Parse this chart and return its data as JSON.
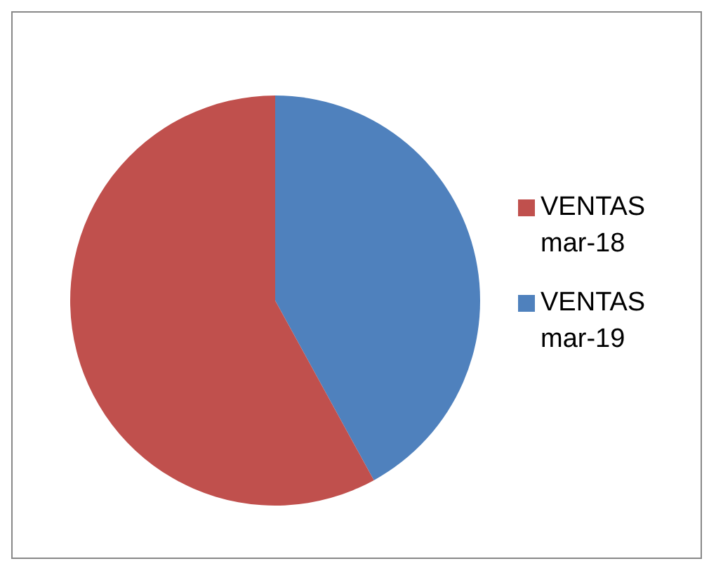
{
  "chart_data": {
    "type": "pie",
    "categories": [
      "VENTAS mar-19",
      "VENTAS mar-18"
    ],
    "values": [
      42,
      58
    ],
    "colors": [
      "#4f81bd",
      "#c0504d"
    ],
    "legend": "right"
  }
}
